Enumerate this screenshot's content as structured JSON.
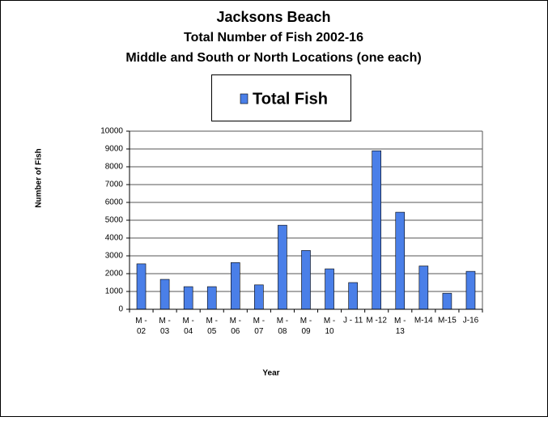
{
  "chart_data": {
    "type": "bar",
    "title": "Jacksons Beach",
    "subtitle": [
      "Total Number of Fish 2002-16",
      "Middle and South or North Locations (one each)"
    ],
    "x_label": "Year",
    "y_label": "Number of Fish",
    "categories": [
      "M -\n02",
      "M -\n03",
      "M -\n04",
      "M -\n05",
      "M -\n06",
      "M -\n07",
      "M -\n08",
      "M -\n09",
      "M -\n10",
      "J - 11",
      "M -12",
      "M -\n13",
      "M-14",
      "M-15",
      "J-16"
    ],
    "series": [
      {
        "name": "Total Fish",
        "color": "#4a7fe8",
        "values": [
          2550,
          1680,
          1270,
          1270,
          2620,
          1370,
          4720,
          3300,
          2270,
          1500,
          8900,
          5450,
          2430,
          900,
          2130
        ]
      }
    ],
    "ylim": [
      0,
      10000
    ],
    "yticks": [
      0,
      1000,
      2000,
      3000,
      4000,
      5000,
      6000,
      7000,
      8000,
      9000,
      10000
    ],
    "grid": true
  }
}
